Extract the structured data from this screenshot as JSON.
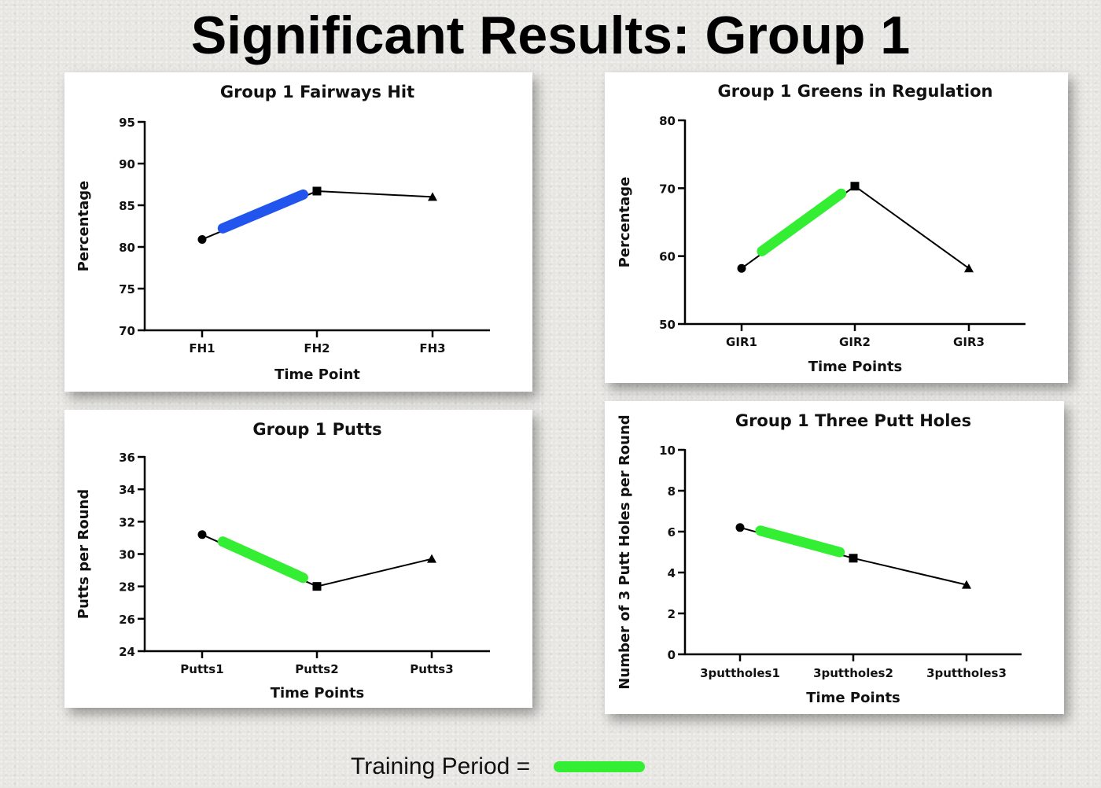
{
  "slide": {
    "title": "Significant Results: Group 1"
  },
  "legend": {
    "label": "Training Period =",
    "color": "#33ee33"
  },
  "chart_data": [
    {
      "type": "line",
      "title": "Group 1 Fairways Hit",
      "xlabel": "Time Point",
      "ylabel": "Percentage",
      "categories": [
        "FH1",
        "FH2",
        "FH3"
      ],
      "values": [
        80.9,
        86.7,
        86.0
      ],
      "ylim": [
        70,
        95
      ],
      "yticks": [
        70,
        75,
        80,
        85,
        90,
        95
      ],
      "markers": [
        "circle",
        "square",
        "triangle"
      ],
      "training_highlight": {
        "from": "FH1",
        "to": "FH2",
        "color": "#2255ee"
      }
    },
    {
      "type": "line",
      "title": "Group 1 Greens in Regulation",
      "xlabel": "Time Points",
      "ylabel": "Percentage",
      "categories": [
        "GIR1",
        "GIR2",
        "GIR3"
      ],
      "values": [
        58.2,
        70.3,
        58.2
      ],
      "ylim": [
        50,
        80
      ],
      "yticks": [
        50,
        60,
        70,
        80
      ],
      "markers": [
        "circle",
        "square",
        "triangle"
      ],
      "training_highlight": {
        "from": "GIR1",
        "to": "GIR2",
        "color": "#33ee33"
      }
    },
    {
      "type": "line",
      "title": "Group 1 Putts",
      "xlabel": "Time Points",
      "ylabel": "Putts per Round",
      "categories": [
        "Putts1",
        "Putts2",
        "Putts3"
      ],
      "values": [
        31.2,
        28.0,
        29.7
      ],
      "ylim": [
        24,
        36
      ],
      "yticks": [
        24,
        26,
        28,
        30,
        32,
        34,
        36
      ],
      "markers": [
        "circle",
        "square",
        "triangle"
      ],
      "training_highlight": {
        "from": "Putts1",
        "to": "Putts2",
        "color": "#33ee33"
      }
    },
    {
      "type": "line",
      "title": "Group 1 Three Putt Holes",
      "xlabel": "Time Points",
      "ylabel": "Number of 3 Putt Holes per Round",
      "categories": [
        "3puttholes1",
        "3puttholes2",
        "3puttholes3"
      ],
      "values": [
        6.2,
        4.7,
        3.4
      ],
      "ylim": [
        0,
        10
      ],
      "yticks": [
        0,
        2,
        4,
        6,
        8,
        10
      ],
      "markers": [
        "circle",
        "square",
        "triangle"
      ],
      "training_highlight": {
        "from": "3puttholes1",
        "to": "3puttholes2",
        "color": "#33ee33"
      }
    }
  ]
}
